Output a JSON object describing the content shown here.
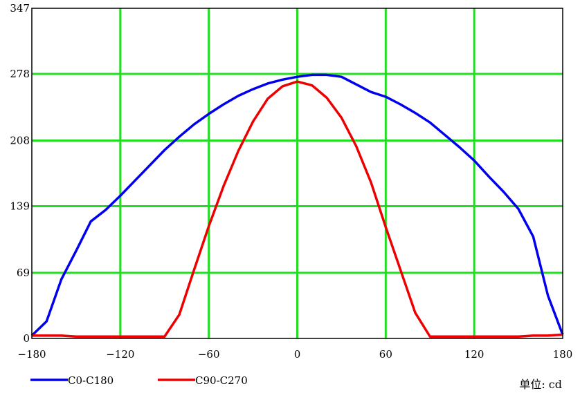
{
  "chart_data": {
    "type": "line",
    "title": "",
    "xlabel": "",
    "ylabel": "",
    "xlim": [
      -180,
      180
    ],
    "ylim": [
      0,
      347
    ],
    "x_ticks": [
      -180,
      -120,
      -60,
      0,
      60,
      120,
      180
    ],
    "y_ticks": [
      0,
      69,
      139,
      208,
      278,
      347
    ],
    "x_tick_labels": [
      "−180",
      "−120",
      "−60",
      "0",
      "60",
      "120",
      "180"
    ],
    "y_tick_labels": [
      "0",
      "69",
      "139",
      "208",
      "278",
      "347"
    ],
    "grid": true,
    "grid_color": "#22dd22",
    "legend_position": "bottom-left",
    "unit_label": "单位: cd",
    "series": [
      {
        "name": "C0-C180",
        "color": "#0000ee",
        "x": [
          -180,
          -170,
          -160,
          -150,
          -140,
          -130,
          -120,
          -110,
          -100,
          -90,
          -80,
          -70,
          -60,
          -50,
          -40,
          -30,
          -20,
          -10,
          0,
          10,
          20,
          30,
          40,
          50,
          60,
          70,
          80,
          90,
          100,
          110,
          120,
          130,
          140,
          150,
          160,
          170,
          180
        ],
        "y": [
          3,
          18,
          62,
          92,
          123,
          135,
          150,
          166,
          182,
          198,
          212,
          225,
          236,
          246,
          255,
          262,
          268,
          272,
          275,
          277,
          277,
          275,
          267,
          259,
          254,
          246,
          237,
          227,
          214,
          201,
          187,
          170,
          154,
          136,
          107,
          45,
          4
        ]
      },
      {
        "name": "C90-C270",
        "color": "#ee0000",
        "x": [
          -180,
          -170,
          -160,
          -150,
          -140,
          -130,
          -120,
          -110,
          -100,
          -90,
          -80,
          -70,
          -60,
          -50,
          -40,
          -30,
          -20,
          -10,
          0,
          10,
          20,
          30,
          40,
          50,
          60,
          70,
          80,
          90,
          100,
          110,
          120,
          130,
          140,
          150,
          160,
          170,
          180
        ],
        "y": [
          3,
          3,
          3,
          2,
          2,
          2,
          2,
          2,
          2,
          2,
          25,
          72,
          118,
          160,
          197,
          228,
          252,
          265,
          270,
          266,
          253,
          232,
          202,
          164,
          117,
          72,
          27,
          2,
          2,
          2,
          2,
          2,
          2,
          2,
          3,
          3,
          4
        ]
      }
    ]
  }
}
